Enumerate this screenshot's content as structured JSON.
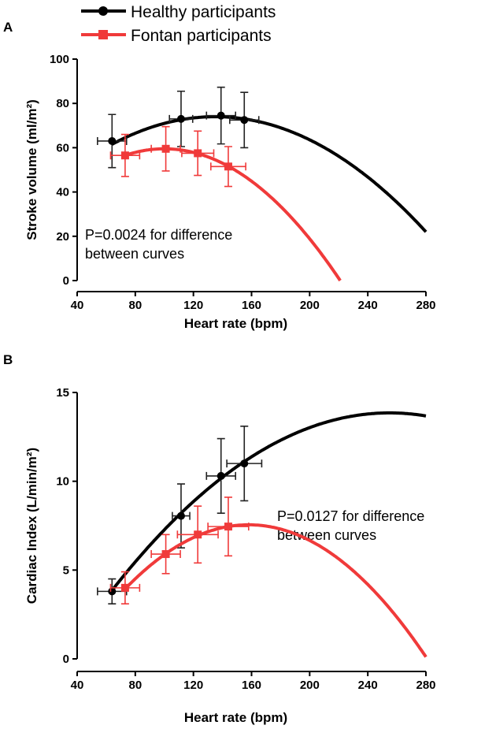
{
  "legend": [
    {
      "name": "Healthy participants",
      "color": "#000000",
      "marker": "circle"
    },
    {
      "name": "Fontan participants",
      "color": "#f03a3a",
      "marker": "square"
    }
  ],
  "chart_data": [
    {
      "panel": "A",
      "type": "line",
      "xlabel": "Heart rate (bpm)",
      "ylabel": "Stroke volume (ml/m²)",
      "xlim": [
        40,
        280
      ],
      "ylim": [
        0,
        100
      ],
      "xticks": [
        40,
        80,
        120,
        160,
        200,
        240,
        280
      ],
      "yticks": [
        0,
        20,
        40,
        60,
        80,
        100
      ],
      "annotation": [
        "P=0.0024 for difference",
        "between curves"
      ],
      "series": [
        {
          "name": "Healthy participants",
          "points": [
            {
              "x": 64,
              "y": 63,
              "xerr": 10,
              "yerr": 12
            },
            {
              "x": 111.5,
              "y": 73,
              "xerr": 8,
              "yerr": 12.5
            },
            {
              "x": 139,
              "y": 74.5,
              "xerr": 10,
              "yerr": 12.8
            },
            {
              "x": 155,
              "y": 72.5,
              "xerr": 10,
              "yerr": 12.5
            }
          ],
          "fit": {
            "peak_x": 135,
            "peak_y": 74,
            "a": 0.002473,
            "range": [
              64,
              280
            ]
          }
        },
        {
          "name": "Fontan participants",
          "points": [
            {
              "x": 73,
              "y": 56.5,
              "xerr": 10,
              "yerr": 9.5
            },
            {
              "x": 101,
              "y": 59.5,
              "xerr": 10,
              "yerr": 10
            },
            {
              "x": 123,
              "y": 57.5,
              "xerr": 11,
              "yerr": 10
            },
            {
              "x": 144,
              "y": 51.5,
              "xerr": 12,
              "yerr": 9
            }
          ],
          "fit": {
            "peak_x": 100,
            "peak_y": 59.5,
            "a": 0.004064,
            "range": [
              73,
              221
            ]
          }
        }
      ]
    },
    {
      "panel": "B",
      "type": "line",
      "xlabel": "Heart rate (bpm)",
      "ylabel": "Cardiac Index (L/min/m²)",
      "xlim": [
        40,
        280
      ],
      "ylim": [
        0,
        15
      ],
      "xticks": [
        40,
        80,
        120,
        160,
        200,
        240,
        280
      ],
      "yticks": [
        0,
        5,
        10,
        15
      ],
      "annotation": [
        "P=0.0127 for difference",
        "between curves"
      ],
      "series": [
        {
          "name": "Healthy participants",
          "points": [
            {
              "x": 64,
              "y": 3.8,
              "xerr": 10,
              "yerr": 0.7
            },
            {
              "x": 111.5,
              "y": 8.05,
              "xerr": 6,
              "yerr": 1.8
            },
            {
              "x": 139,
              "y": 10.3,
              "xerr": 10,
              "yerr": 2.1
            },
            {
              "x": 155,
              "y": 11.0,
              "xerr": 12,
              "yerr": 2.1
            }
          ],
          "fit": {
            "peak_x": 255,
            "peak_y": 13.85,
            "a": 0.000274,
            "range": [
              64,
              280
            ]
          }
        },
        {
          "name": "Fontan participants",
          "points": [
            {
              "x": 73,
              "y": 4.0,
              "xerr": 10,
              "yerr": 0.9
            },
            {
              "x": 101,
              "y": 5.9,
              "xerr": 10,
              "yerr": 1.1
            },
            {
              "x": 123,
              "y": 7.0,
              "xerr": 14,
              "yerr": 1.6
            },
            {
              "x": 144,
              "y": 7.45,
              "xerr": 14,
              "yerr": 1.65
            }
          ],
          "fit": {
            "peak_x": 158,
            "peak_y": 7.55,
            "a": 0.0005,
            "range": [
              73,
              280
            ]
          }
        }
      ]
    }
  ]
}
